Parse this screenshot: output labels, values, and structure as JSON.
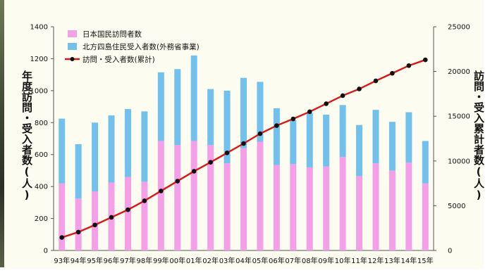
{
  "chart_data": {
    "type": "bar",
    "stacked": true,
    "secondary_axis": true,
    "categories": [
      "93年",
      "94年",
      "95年",
      "96年",
      "97年",
      "98年",
      "99年",
      "00年",
      "01年",
      "02年",
      "03年",
      "04年",
      "05年",
      "06年",
      "07年",
      "08年",
      "09年",
      "10年",
      "11年",
      "12年",
      "13年",
      "14年",
      "15年"
    ],
    "series": [
      {
        "name": "日本国民訪問者数",
        "kind": "bar",
        "color": "#f4a0e8",
        "values": [
          420,
          325,
          370,
          425,
          460,
          430,
          685,
          660,
          685,
          660,
          545,
          640,
          680,
          535,
          540,
          520,
          525,
          585,
          465,
          545,
          500,
          550,
          420
        ]
      },
      {
        "name": "北方四島住民受入者数(外務省事業)",
        "kind": "bar",
        "color": "#72c1ec",
        "values": [
          405,
          340,
          430,
          420,
          425,
          440,
          430,
          475,
          535,
          350,
          455,
          440,
          375,
          355,
          275,
          340,
          325,
          325,
          320,
          335,
          305,
          315,
          265
        ]
      },
      {
        "name": "訪問・受入者数(累計)",
        "kind": "line",
        "color": "#d81818",
        "marker_color": "#111111",
        "values": [
          1450,
          2050,
          2850,
          3700,
          4550,
          5550,
          6650,
          7750,
          8850,
          9850,
          10900,
          11950,
          13050,
          13950,
          14700,
          15500,
          16400,
          17300,
          18050,
          18950,
          19800,
          20650,
          21300
        ]
      }
    ],
    "ylabel": "年度訪問・受入者数(人)",
    "ylabel_right": "訪問・受入累計者数(人)",
    "ylim": [
      0,
      1400
    ],
    "yticks": [
      0,
      200,
      400,
      600,
      800,
      1000,
      1200,
      1400
    ],
    "ylim_right": [
      0,
      25000
    ],
    "yticks_right": [
      0,
      5000,
      10000,
      15000,
      20000,
      25000
    ],
    "grid": false,
    "legend_position": "top-left"
  }
}
